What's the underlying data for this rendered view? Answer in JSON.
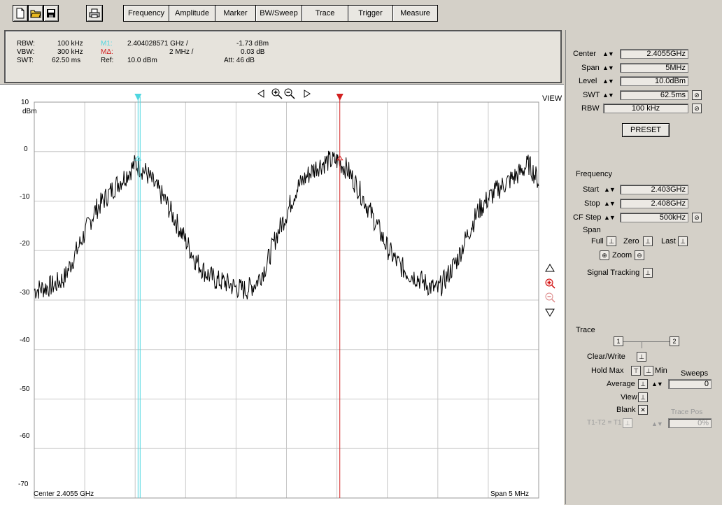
{
  "toolbar": {
    "icons": [
      "new-file-icon",
      "open-folder-icon",
      "save-icon",
      "print-icon"
    ],
    "menu": [
      "Frequency",
      "Amplitude",
      "Marker",
      "BW/Sweep",
      "Trace",
      "Trigger",
      "Measure"
    ]
  },
  "info": {
    "rbw_label": "RBW:",
    "rbw_value": "100 kHz",
    "vbw_label": "VBW:",
    "vbw_value": "300 kHz",
    "swt_label": "SWT:",
    "swt_value": "62.50 ms",
    "m1_label": "M1:",
    "m1_freq": "2.404028571 GHz /",
    "m1_level": "-1.73 dBm",
    "md_label": "MΔ:",
    "md_freq": "2 MHz /",
    "md_level": "0.03 dB",
    "ref_label": "Ref:",
    "ref_value": "10.0 dBm",
    "att": "Att:  46 dB",
    "m1_color": "#4fd6e0",
    "md_color": "#d22020"
  },
  "plot": {
    "view_label": "VIEW",
    "center_label": "Center 2.4055 GHz",
    "span_label": "Span 5 MHz",
    "unit": "dBm",
    "y_ticks": [
      "10",
      "0",
      "-10",
      "-20",
      "-30",
      "-40",
      "-50",
      "-60",
      "-70"
    ]
  },
  "chart_data": {
    "type": "line",
    "xlabel": "Center 2.4055 GHz",
    "ylabel": "dBm",
    "xlim_ghz": [
      2.403,
      2.408
    ],
    "ylim": [
      -70,
      10
    ],
    "y_ticks": [
      10,
      0,
      -10,
      -20,
      -30,
      -40,
      -50,
      -60,
      -70
    ],
    "grid": true,
    "markers": [
      {
        "name": "M1",
        "x_ghz": 2.404028571,
        "y": -1.73,
        "color": "#4fd6e0"
      },
      {
        "name": "MΔ",
        "x_ghz": 2.406028571,
        "y": -1.7,
        "color": "#d22020"
      }
    ],
    "series": [
      {
        "x_ghz": [
          2.403,
          2.4031,
          2.4032,
          2.4033,
          2.4034,
          2.4035,
          2.4036,
          2.4037,
          2.4038,
          2.4039,
          2.404,
          2.4041,
          2.4042,
          2.4043,
          2.4044,
          2.4045,
          2.4046,
          2.4047,
          2.4048,
          2.4049,
          2.405,
          2.4051,
          2.4052,
          2.4053,
          2.4054,
          2.4055,
          2.4056,
          2.4057,
          2.4058,
          2.4059,
          2.406,
          2.4061,
          2.4062,
          2.4063,
          2.4064,
          2.4065,
          2.4066,
          2.4067,
          2.4068,
          2.4069,
          2.407,
          2.4071,
          2.4072,
          2.4073,
          2.4074,
          2.4075,
          2.4076,
          2.4077,
          2.4078,
          2.4079,
          2.408
        ],
        "values": [
          -28,
          -27.5,
          -27,
          -25.5,
          -21,
          -16.5,
          -12,
          -9.5,
          -7,
          -5,
          -2.5,
          -4,
          -7,
          -10,
          -14,
          -18,
          -22,
          -24.5,
          -26,
          -26.5,
          -27.5,
          -28,
          -26.5,
          -23,
          -17,
          -12.5,
          -7.5,
          -5,
          -3,
          -2,
          -1.8,
          -3.5,
          -7,
          -11,
          -15,
          -19.5,
          -22.5,
          -24.5,
          -25.5,
          -27,
          -28,
          -25,
          -21.5,
          -16.5,
          -12,
          -9.5,
          -7.5,
          -6,
          -4.5,
          -2.5,
          -6
        ]
      }
    ]
  },
  "side_buttons": [
    "triangle-up-icon",
    "zoom-in-icon",
    "zoom-out-icon",
    "triangle-down-icon"
  ],
  "rpanel": {
    "center_label": "Center",
    "center_value": "2.4055GHz",
    "span_label": "Span",
    "span_value": "5MHz",
    "level_label": "Level",
    "level_value": "10.0dBm",
    "swt_label": "SWT",
    "swt_value": "62.5ms",
    "rbw_label": "RBW",
    "rbw_value": "100 kHz",
    "preset": "PRESET",
    "frequency_title": "Frequency",
    "start_label": "Start",
    "start_value": "2.403GHz",
    "stop_label": "Stop",
    "stop_value": "2.408GHz",
    "cfstep_label": "CF Step",
    "cfstep_value": "500kHz",
    "span_title": "Span",
    "full_label": "Full",
    "zero_label": "Zero",
    "last_label": "Last",
    "zoom_label": "Zoom",
    "signal_tracking": "Signal Tracking",
    "trace_title": "Trace",
    "clear_write": "Clear/Write",
    "hold_max": "Hold Max",
    "min": "Min",
    "sweeps": "Sweeps",
    "sweeps_value": "0",
    "average": "Average",
    "view": "View",
    "blank": "Blank",
    "trace_pos": "Trace Pos",
    "t1t2": "T1-T2 = T1",
    "trace_pos_value": "0%"
  }
}
